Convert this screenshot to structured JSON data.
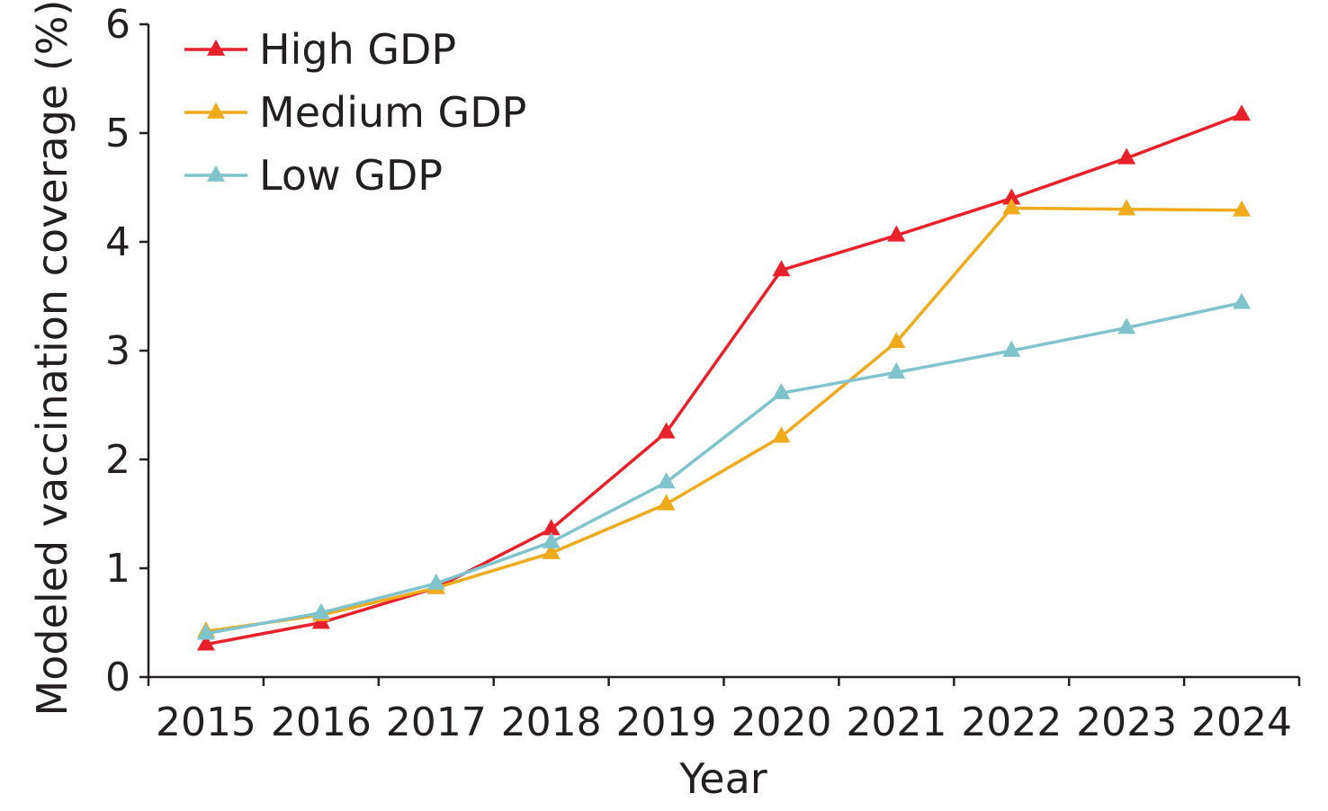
{
  "chart_data": {
    "type": "line",
    "title": "",
    "xlabel": "Year",
    "ylabel": "Modeled vaccination coverage (%)",
    "categories": [
      "2015",
      "2016",
      "2017",
      "2018",
      "2019",
      "2020",
      "2021",
      "2022",
      "2023",
      "2024"
    ],
    "ylim": [
      0,
      6
    ],
    "yticks": [
      "0",
      "1",
      "2",
      "3",
      "4",
      "5",
      "6"
    ],
    "grid": false,
    "legend_position": "top-left",
    "marker": "triangle",
    "series": [
      {
        "name": "High GDP",
        "color": "#e8202a",
        "values": [
          0.3,
          0.5,
          0.82,
          1.36,
          2.25,
          3.74,
          4.06,
          4.4,
          4.77,
          5.17
        ]
      },
      {
        "name": "Medium GDP",
        "color": "#f0ab1d",
        "values": [
          0.42,
          0.57,
          0.82,
          1.14,
          1.59,
          2.21,
          3.08,
          4.31,
          4.3,
          4.29
        ]
      },
      {
        "name": "Low GDP",
        "color": "#7fc3cc",
        "values": [
          0.4,
          0.59,
          0.86,
          1.24,
          1.79,
          2.61,
          2.8,
          3.0,
          3.21,
          3.44
        ]
      }
    ]
  }
}
